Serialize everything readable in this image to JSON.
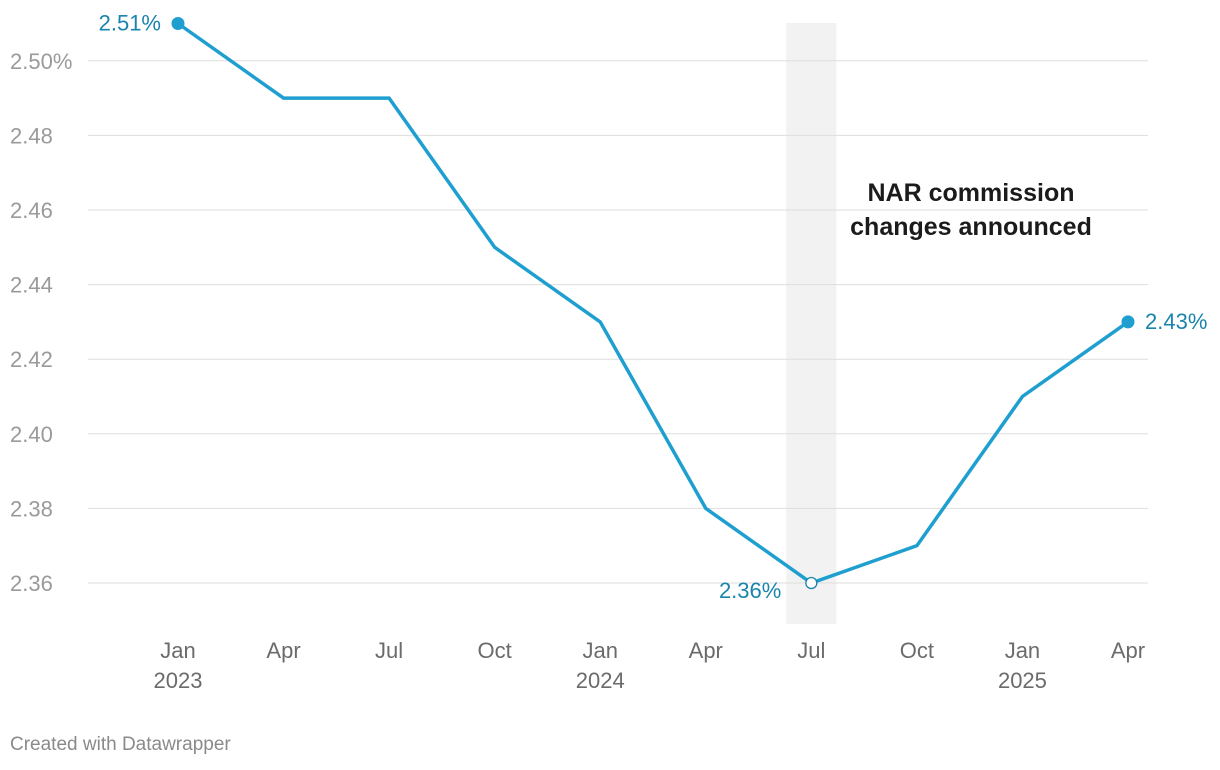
{
  "chart_data": {
    "type": "line",
    "x": [
      "2023-01",
      "2023-04",
      "2023-07",
      "2023-10",
      "2024-01",
      "2024-04",
      "2024-07",
      "2024-10",
      "2025-01",
      "2025-04"
    ],
    "series": [
      {
        "values": [
          2.51,
          2.49,
          2.49,
          2.45,
          2.43,
          2.38,
          2.36,
          2.37,
          2.41,
          2.43
        ]
      }
    ],
    "ylim": [
      2.35,
      2.51
    ],
    "yticks": [
      {
        "value": 2.5,
        "label": "2.50%"
      },
      {
        "value": 2.48,
        "label": "2.48"
      },
      {
        "value": 2.46,
        "label": "2.46"
      },
      {
        "value": 2.44,
        "label": "2.44"
      },
      {
        "value": 2.42,
        "label": "2.42"
      },
      {
        "value": 2.4,
        "label": "2.40"
      },
      {
        "value": 2.38,
        "label": "2.38"
      },
      {
        "value": 2.36,
        "label": "2.36"
      }
    ],
    "xticks": [
      {
        "x": "2023-01",
        "month": "Jan",
        "year": "2023"
      },
      {
        "x": "2023-04",
        "month": "Apr",
        "year": ""
      },
      {
        "x": "2023-07",
        "month": "Jul",
        "year": ""
      },
      {
        "x": "2023-10",
        "month": "Oct",
        "year": ""
      },
      {
        "x": "2024-01",
        "month": "Jan",
        "year": "2024"
      },
      {
        "x": "2024-04",
        "month": "Apr",
        "year": ""
      },
      {
        "x": "2024-07",
        "month": "Jul",
        "year": ""
      },
      {
        "x": "2024-10",
        "month": "Oct",
        "year": ""
      },
      {
        "x": "2025-01",
        "month": "Jan",
        "year": "2025"
      },
      {
        "x": "2025-04",
        "month": "Apr",
        "year": ""
      }
    ],
    "point_labels": [
      {
        "x": "2023-01",
        "value": 2.51,
        "label": "2.51%"
      },
      {
        "x": "2024-07",
        "value": 2.36,
        "label": "2.36%"
      },
      {
        "x": "2025-04",
        "value": 2.43,
        "label": "2.43%"
      }
    ],
    "highlight_band": {
      "x": "2024-07"
    },
    "annotation": {
      "lines": [
        "NAR commission",
        "changes announced"
      ]
    },
    "grid": true,
    "line_color": "#1f9fd0",
    "label_color": "#1a84ad",
    "band_color": "#f2f2f2"
  },
  "credit": "Created with Datawrapper"
}
